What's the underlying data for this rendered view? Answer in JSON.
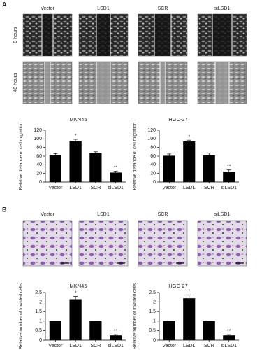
{
  "panels": [
    {
      "label": "A",
      "columns": [
        "Vector",
        "LSD1",
        "SCR",
        "siLSD1"
      ],
      "rows": [
        "0 hours",
        "48 hours"
      ]
    },
    {
      "label": "B",
      "columns": [
        "Vector",
        "LSD1",
        "SCR",
        "siLSD1"
      ]
    }
  ],
  "chart_data": [
    {
      "type": "bar",
      "title": "MKN45",
      "ylabel": "Relative distance of cell migration",
      "categories": [
        "Vector",
        "LSD1",
        "SCR",
        "siLSD1"
      ],
      "values": [
        63,
        95,
        67,
        22
      ],
      "errors": [
        3,
        4,
        3,
        3
      ],
      "color": "#000000",
      "ylim": [
        0,
        120
      ],
      "yticks": [
        0,
        20,
        40,
        60,
        80,
        100,
        120
      ],
      "annotations": [
        {
          "category": "LSD1",
          "text": "*"
        },
        {
          "category": "siLSD1",
          "text": "**"
        }
      ]
    },
    {
      "type": "bar",
      "title": "HGC-27",
      "ylabel": "Relative distance of cell migration",
      "categories": [
        "Vector",
        "LSD1",
        "SCR",
        "siLSD1"
      ],
      "values": [
        61,
        94,
        62,
        24
      ],
      "errors": [
        4,
        3,
        5,
        4
      ],
      "color": "#000000",
      "ylim": [
        0,
        120
      ],
      "yticks": [
        0,
        20,
        40,
        60,
        80,
        100,
        120
      ],
      "annotations": [
        {
          "category": "LSD1",
          "text": "*"
        },
        {
          "category": "siLSD1",
          "text": "**"
        }
      ]
    },
    {
      "type": "bar",
      "title": "MKN45",
      "ylabel": "Relative number of invaded cells",
      "categories": [
        "Vector",
        "LSD1",
        "SCR",
        "siLSD1"
      ],
      "values": [
        1,
        2.15,
        1,
        0.25
      ],
      "errors": [
        0,
        0.15,
        0,
        0.04
      ],
      "color": "#000000",
      "ylim": [
        0,
        2.5
      ],
      "yticks": [
        0,
        0.5,
        1,
        1.5,
        2,
        2.5
      ],
      "annotations": [
        {
          "category": "LSD1",
          "text": "*"
        },
        {
          "category": "siLSD1",
          "text": "**"
        }
      ]
    },
    {
      "type": "bar",
      "title": "HGC-27",
      "ylabel": "Relative number of invaded cells",
      "categories": [
        "Vector",
        "LSD1",
        "SCR",
        "siLSD1"
      ],
      "values": [
        1,
        2.2,
        1,
        0.25
      ],
      "errors": [
        0,
        0.18,
        0,
        0.04
      ],
      "color": "#000000",
      "ylim": [
        0,
        2.5
      ],
      "yticks": [
        0,
        0.5,
        1,
        1.5,
        2,
        2.5
      ],
      "annotations": [
        {
          "category": "LSD1",
          "text": "*"
        },
        {
          "category": "siLSD1",
          "text": "**"
        }
      ]
    }
  ]
}
